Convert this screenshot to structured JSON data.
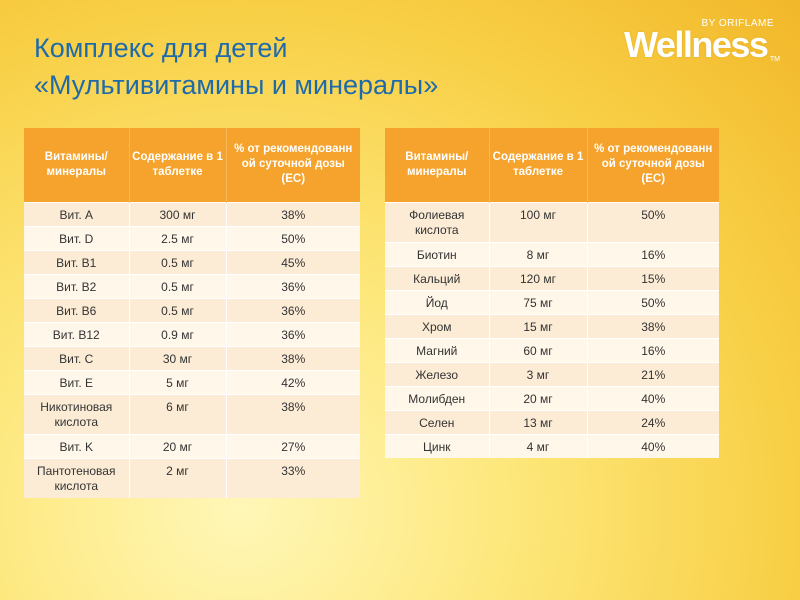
{
  "title": {
    "line1": "Комплекс для детей",
    "line2": "«Мультивитамины и минералы»"
  },
  "logo": {
    "main": "Wellness",
    "sub": "BY ORIFLAME",
    "tm": "TM"
  },
  "headers": {
    "col1": "Витамины/ минералы",
    "col2": "Содержание в 1 таблетке",
    "col3": "% от рекомендованн ой суточной дозы (ЕС)"
  },
  "table1": [
    {
      "name": "Вит. A",
      "amount": "300 мг",
      "percent": "38%"
    },
    {
      "name": "Вит. D",
      "amount": "2.5 мг",
      "percent": "50%"
    },
    {
      "name": "Вит. B1",
      "amount": "0.5 мг",
      "percent": "45%"
    },
    {
      "name": "Вит. B2",
      "amount": "0.5 мг",
      "percent": "36%"
    },
    {
      "name": "Вит. B6",
      "amount": "0.5 мг",
      "percent": "36%"
    },
    {
      "name": "Вит. B12",
      "amount": "0.9 мг",
      "percent": "36%"
    },
    {
      "name": "Вит. C",
      "amount": "30 мг",
      "percent": "38%"
    },
    {
      "name": "Вит. E",
      "amount": "5 мг",
      "percent": "42%"
    },
    {
      "name": "Никотиновая кислота",
      "amount": "6 мг",
      "percent": "38%"
    },
    {
      "name": "Вит. K",
      "amount": "20 мг",
      "percent": "27%"
    },
    {
      "name": "Пантотеновая кислота",
      "amount": "2 мг",
      "percent": "33%"
    }
  ],
  "table2": [
    {
      "name": "Фолиевая кислота",
      "amount": "100 мг",
      "percent": "50%"
    },
    {
      "name": "Биотин",
      "amount": "8 мг",
      "percent": "16%"
    },
    {
      "name": "Кальций",
      "amount": "120 мг",
      "percent": "15%"
    },
    {
      "name": "Йод",
      "amount": "75 мг",
      "percent": "50%"
    },
    {
      "name": "Хром",
      "amount": "15 мг",
      "percent": "38%"
    },
    {
      "name": "Магний",
      "amount": "60 мг",
      "percent": "16%"
    },
    {
      "name": "Железо",
      "amount": "3 мг",
      "percent": "21%"
    },
    {
      "name": "Молибден",
      "amount": "20 мг",
      "percent": "40%"
    },
    {
      "name": "Селен",
      "amount": "13 мг",
      "percent": "24%"
    },
    {
      "name": "Цинк",
      "amount": "4 мг",
      "percent": "40%"
    }
  ]
}
